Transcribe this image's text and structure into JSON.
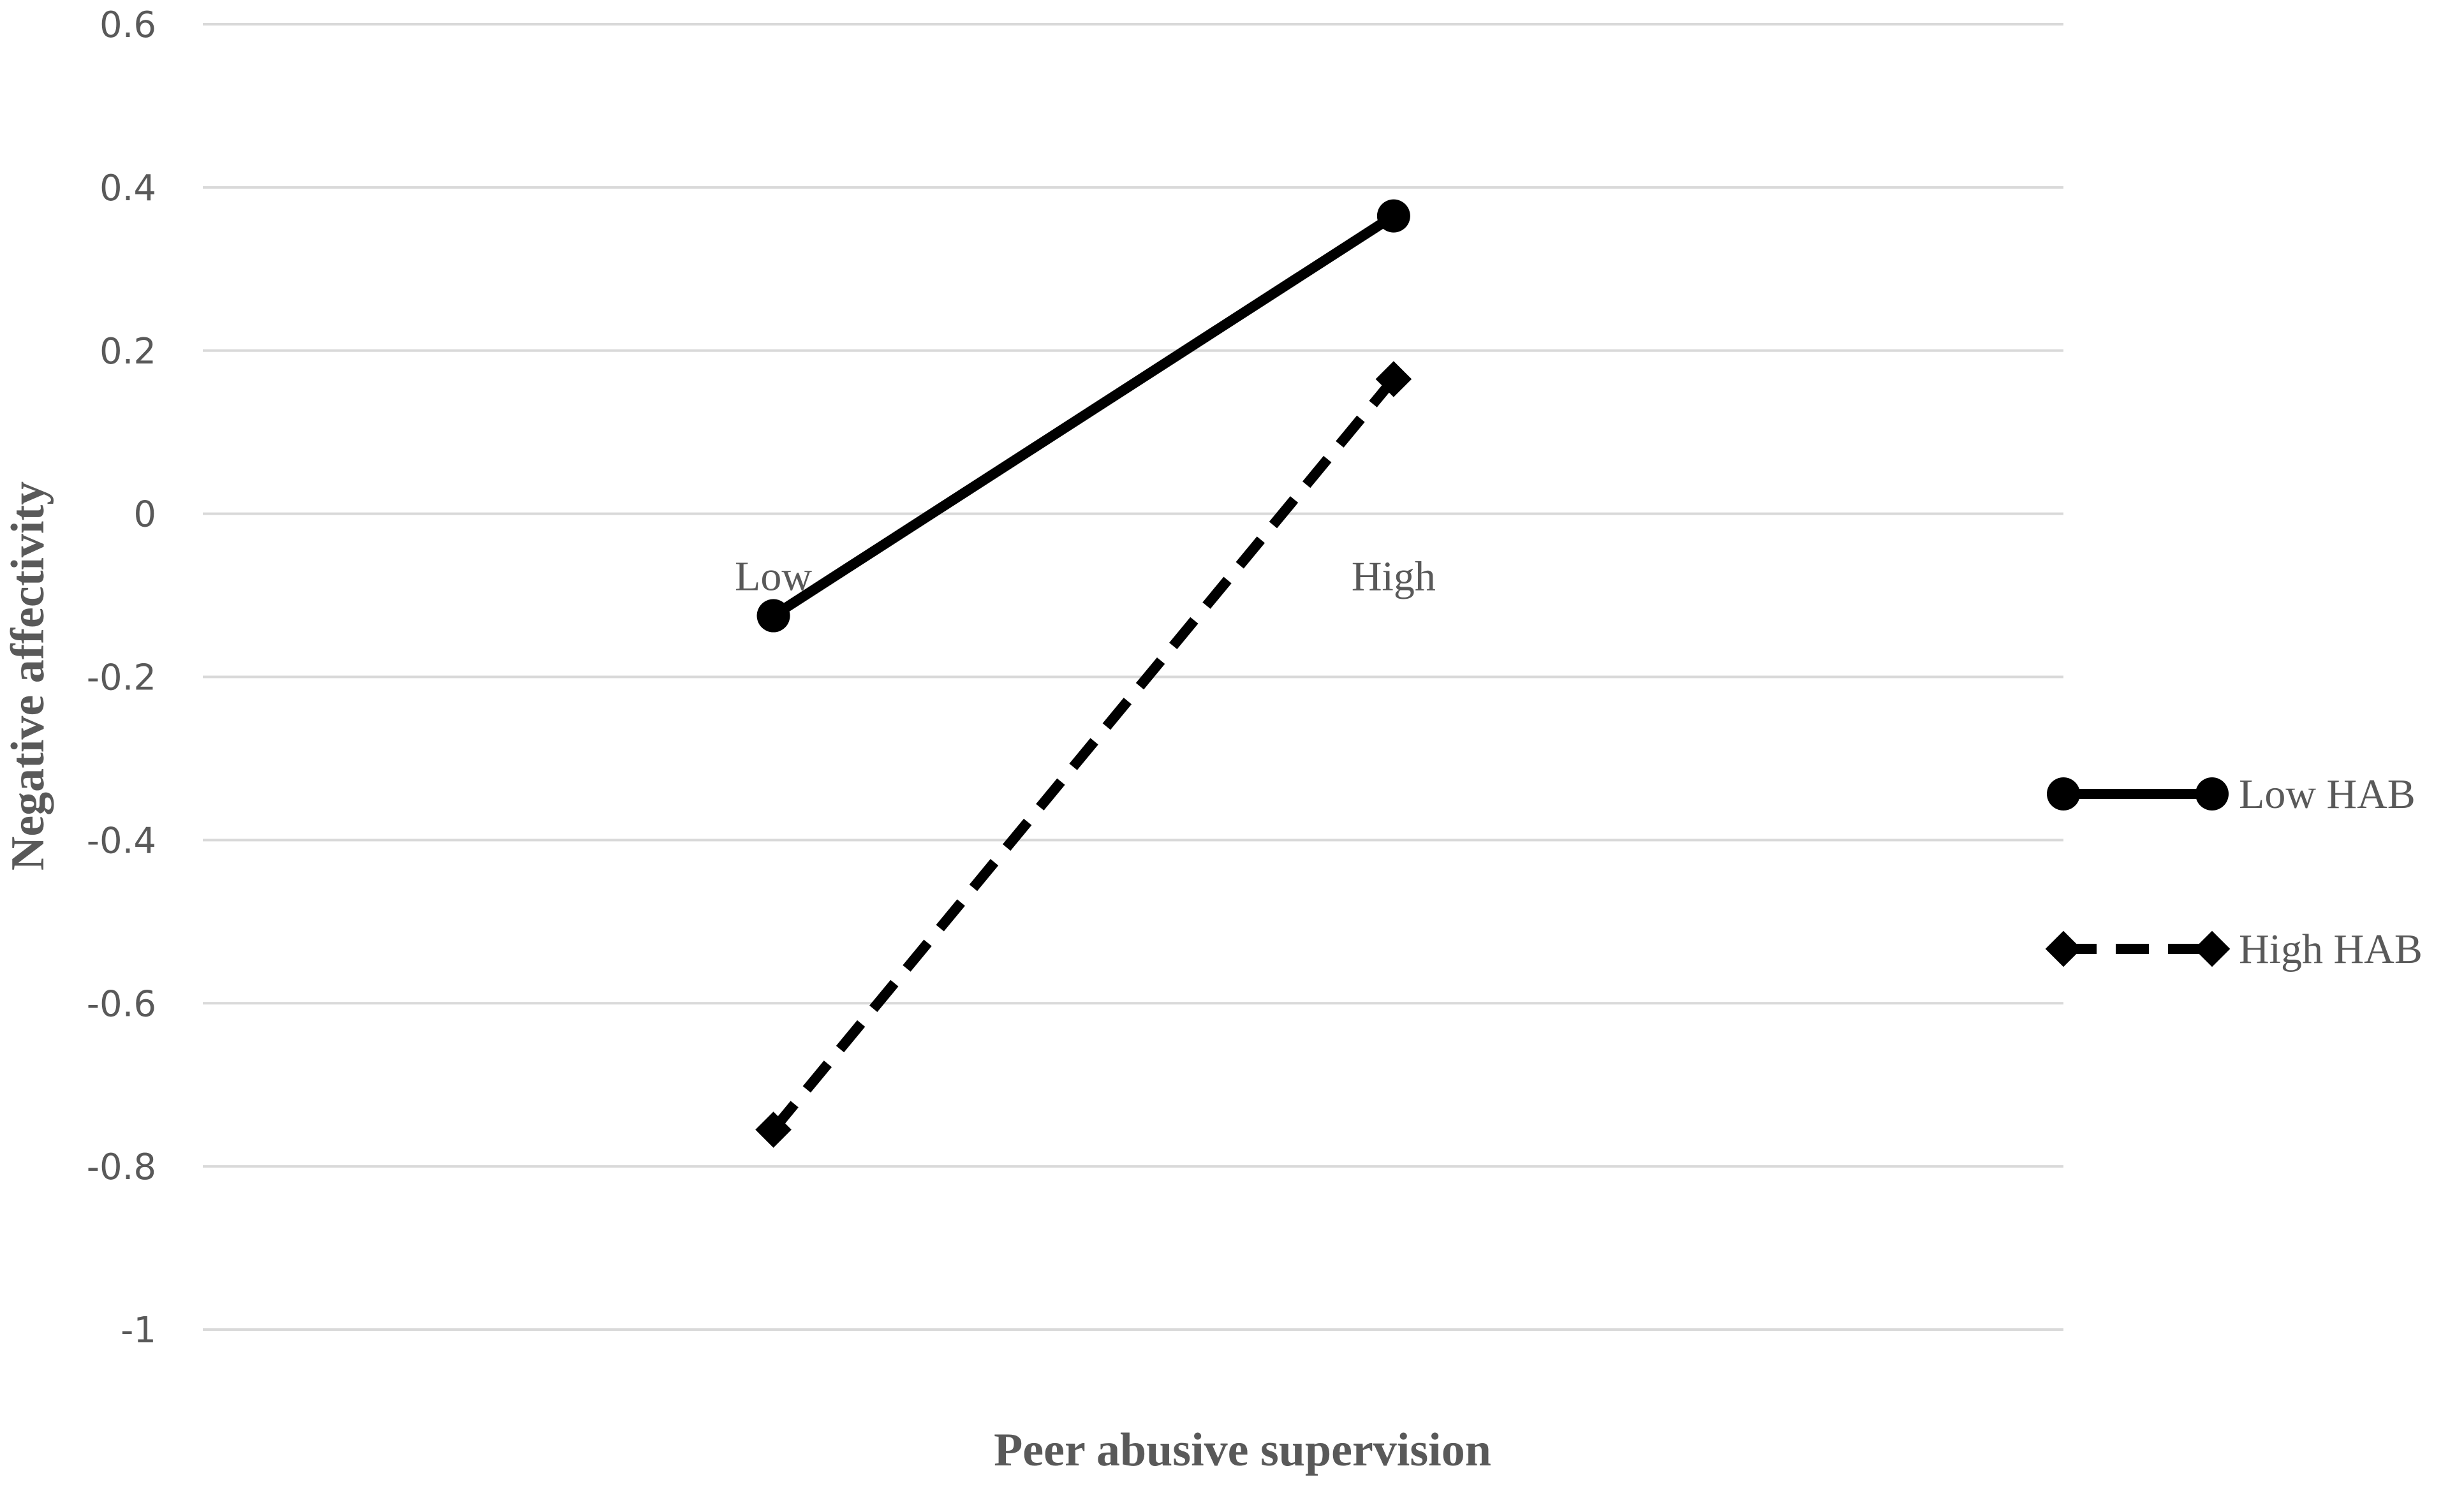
{
  "chart_data": {
    "type": "line",
    "title": "",
    "xlabel": "Peer abusive supervision",
    "ylabel": "Negative affectivity",
    "categories": [
      "Low",
      "High"
    ],
    "ylim": [
      -1,
      0.6
    ],
    "yticks": [
      "0.6",
      "0.4",
      "0.2",
      "0",
      "-0.2",
      "-0.4",
      "-0.6",
      "-0.8",
      "-1"
    ],
    "grid": true,
    "legend_position": "right",
    "series": [
      {
        "name": "Low HAB",
        "values": [
          -0.125,
          0.365
        ],
        "style": "solid",
        "marker": "circle",
        "color": "#000000"
      },
      {
        "name": "High HAB",
        "values": [
          -0.755,
          0.165
        ],
        "style": "dashed",
        "marker": "diamond",
        "color": "#000000"
      }
    ]
  }
}
